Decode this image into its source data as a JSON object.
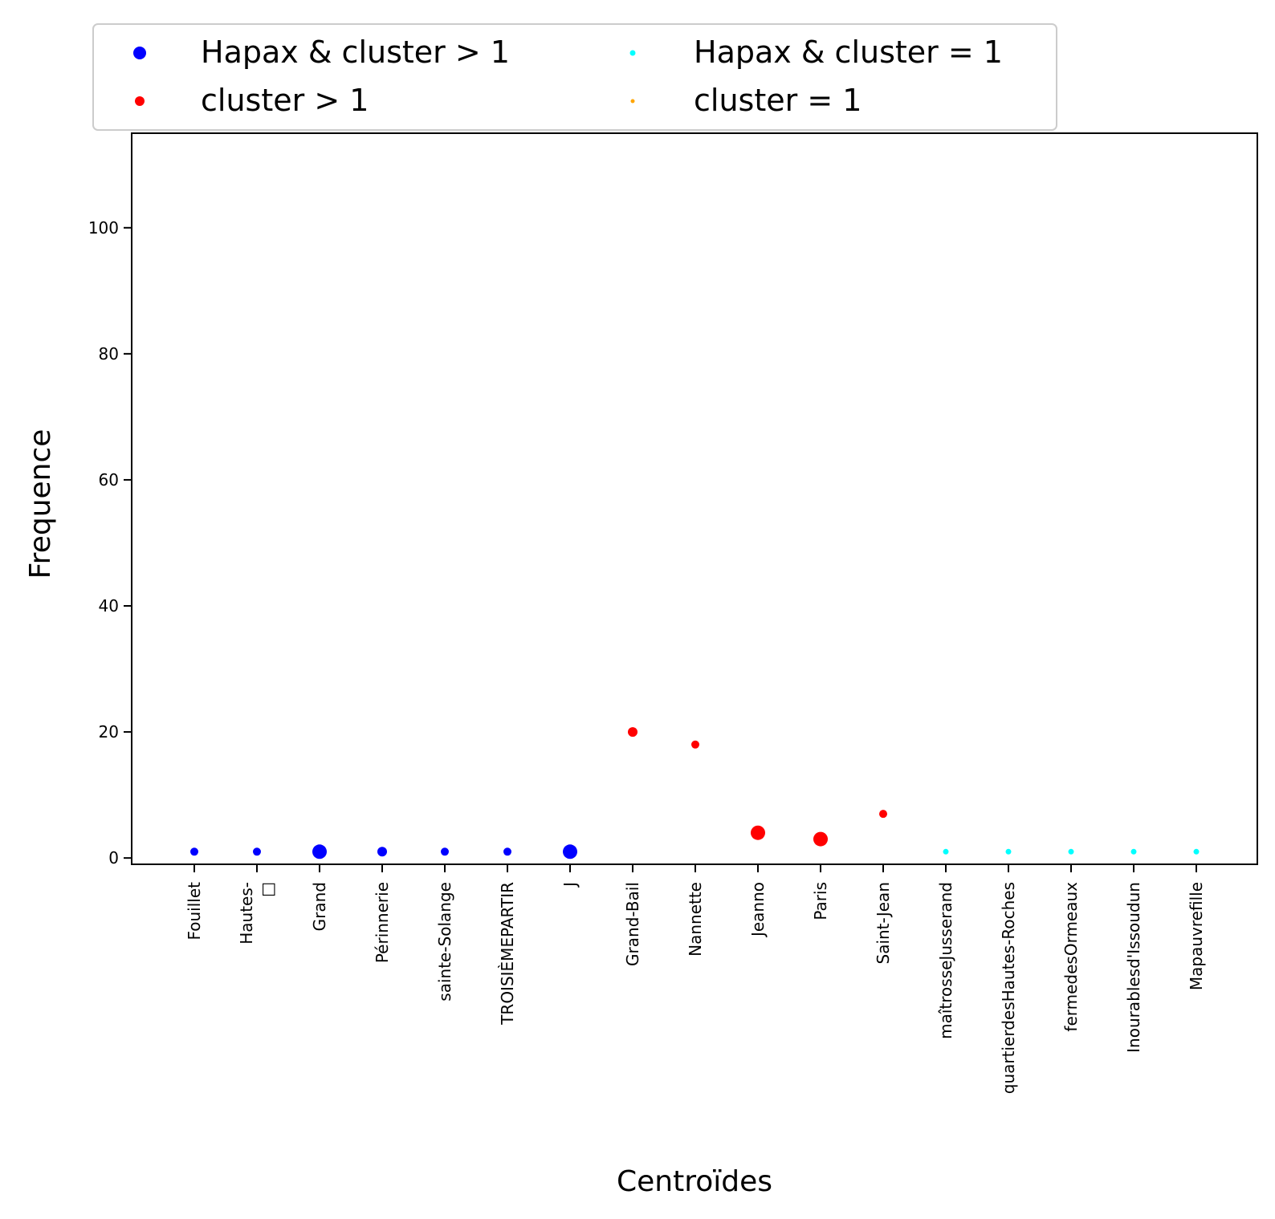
{
  "chart_data": {
    "type": "scatter",
    "xlabel": "Centroïdes",
    "ylabel": "Frequence",
    "ylim": [
      -1,
      115
    ],
    "yticks": [
      0,
      20,
      40,
      60,
      80,
      100
    ],
    "grid": false,
    "legend_position": "top",
    "categories": [
      [
        "Fouillet"
      ],
      [
        "Hautes-",
        "□"
      ],
      [
        "Grand"
      ],
      [
        "Périnnerie"
      ],
      [
        "sainte-Solange"
      ],
      [
        "TROISIÈMEPARTIR"
      ],
      [
        "J"
      ],
      [
        "Grand-Bail"
      ],
      [
        "Nannette"
      ],
      [
        "Jeanno"
      ],
      [
        "Paris"
      ],
      [
        "Saint-Jean"
      ],
      [
        "maîtrosseJusserand"
      ],
      [
        "quartierdesHautes-Roches"
      ],
      [
        "fermedesOrmeaux"
      ],
      [
        "Inourablesd'Issoudun"
      ],
      [
        "Mapauvrefille"
      ]
    ],
    "series": [
      {
        "name": "Hapax & cluster > 1",
        "color": "#0000ff",
        "points": [
          {
            "x": "Fouillet",
            "y": 1,
            "size": 2
          },
          {
            "x": "Hautes-",
            "y": 1,
            "size": 2
          },
          {
            "x": "Grand",
            "y": 1,
            "size": 4
          },
          {
            "x": "Périnnerie",
            "y": 1,
            "size": 3
          },
          {
            "x": "sainte-Solange",
            "y": 1,
            "size": 2
          },
          {
            "x": "TROISIÈMEPARTIR",
            "y": 1,
            "size": 2
          },
          {
            "x": "J",
            "y": 1,
            "size": 4
          }
        ]
      },
      {
        "name": "cluster > 1",
        "color": "#ff0000",
        "points": [
          {
            "x": "Grand-Bail",
            "y": 20,
            "size": 3
          },
          {
            "x": "Nannette",
            "y": 18,
            "size": 2
          },
          {
            "x": "Jeanno",
            "y": 4,
            "size": 4
          },
          {
            "x": "Paris",
            "y": 3,
            "size": 4
          },
          {
            "x": "Saint-Jean",
            "y": 7,
            "size": 2
          }
        ]
      },
      {
        "name": "Hapax & cluster = 1",
        "color": "#00ffff",
        "points": [
          {
            "x": "maîtrosseJusserand",
            "y": 1,
            "size": 1
          },
          {
            "x": "quartierdesHautes-Roches",
            "y": 1,
            "size": 1
          },
          {
            "x": "fermedesOrmeaux",
            "y": 1,
            "size": 1
          },
          {
            "x": "Inourablesd'Issoudun",
            "y": 1,
            "size": 1
          },
          {
            "x": "Mapauvrefille",
            "y": 1,
            "size": 1
          }
        ]
      },
      {
        "name": "cluster = 1",
        "color": "#ffa500",
        "points": []
      }
    ]
  }
}
